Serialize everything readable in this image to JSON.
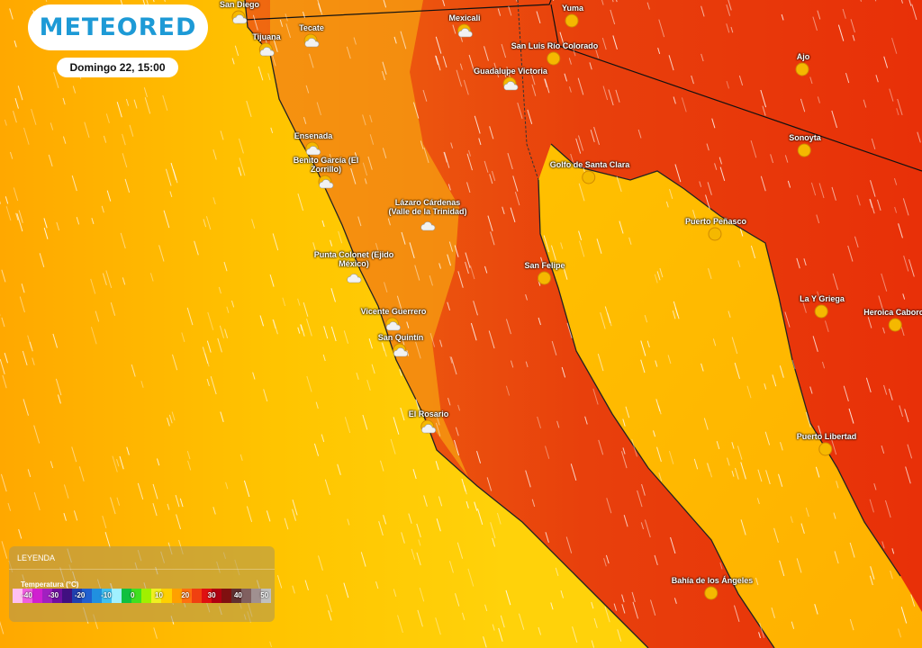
{
  "brand": {
    "logo_text": "METEORED",
    "color": "#1d9ad6"
  },
  "datetime": "Domingo 22, 15:00",
  "legend": {
    "title": "LEYENDA",
    "variable": "Temperatura (°C)",
    "ticks": [
      "-40",
      "-30",
      "-20",
      "-10",
      "0",
      "10",
      "20",
      "30",
      "40",
      "50"
    ],
    "colors": [
      "#ffc0f0",
      "#f060e0",
      "#d020d0",
      "#a020c0",
      "#7010a0",
      "#401080",
      "#2040b0",
      "#2060d0",
      "#2090e0",
      "#40c0f0",
      "#a0f0ff",
      "#10c040",
      "#40e020",
      "#a0f000",
      "#f0f020",
      "#ffd000",
      "#ffa000",
      "#ff7010",
      "#f04010",
      "#e01010",
      "#b00010",
      "#801010",
      "#603030",
      "#806060",
      "#a09090",
      "#c0c0c0"
    ]
  },
  "cities": [
    {
      "name": "San Diego",
      "icon": "partly-cloudy-icon"
    },
    {
      "name": "Tijuana",
      "icon": "partly-cloudy-icon"
    },
    {
      "name": "Tecate",
      "icon": "partly-cloudy-icon"
    },
    {
      "name": "Mexicali",
      "icon": "partly-cloudy-icon"
    },
    {
      "name": "Yuma",
      "icon": "sun-icon"
    },
    {
      "name": "San Luis Río Colorado",
      "icon": "sun-icon"
    },
    {
      "name": "Guadalupe Victoria",
      "icon": "partly-cloudy-icon"
    },
    {
      "name": "Ajo",
      "icon": "sun-icon"
    },
    {
      "name": "Ensenada",
      "icon": "partly-cloudy-icon"
    },
    {
      "name": "Benito García (El Zorrillo)",
      "icon": "partly-cloudy-icon"
    },
    {
      "name": "Sonoyta",
      "icon": "sun-icon"
    },
    {
      "name": "Golfo de Santa Clara",
      "icon": "sun-icon"
    },
    {
      "name": "Lázaro Cárdenas (Valle de la Trinidad)",
      "icon": "cloud-icon"
    },
    {
      "name": "Puerto Peñasco",
      "icon": "sun-icon"
    },
    {
      "name": "Punta Colonet (Ejido México)",
      "icon": "cloud-icon"
    },
    {
      "name": "San Felipe",
      "icon": "sun-icon"
    },
    {
      "name": "La Y Griega",
      "icon": "sun-icon"
    },
    {
      "name": "Heroica Caborca",
      "icon": "sun-icon"
    },
    {
      "name": "Vicente Guerrero",
      "icon": "partly-cloudy-icon"
    },
    {
      "name": "San Quintín",
      "icon": "partly-cloudy-icon"
    },
    {
      "name": "El Rosario",
      "icon": "partly-cloudy-icon"
    },
    {
      "name": "Puerto Libertad",
      "icon": "sun-icon"
    },
    {
      "name": "Bahía de los Ángeles",
      "icon": "sun-icon"
    }
  ]
}
